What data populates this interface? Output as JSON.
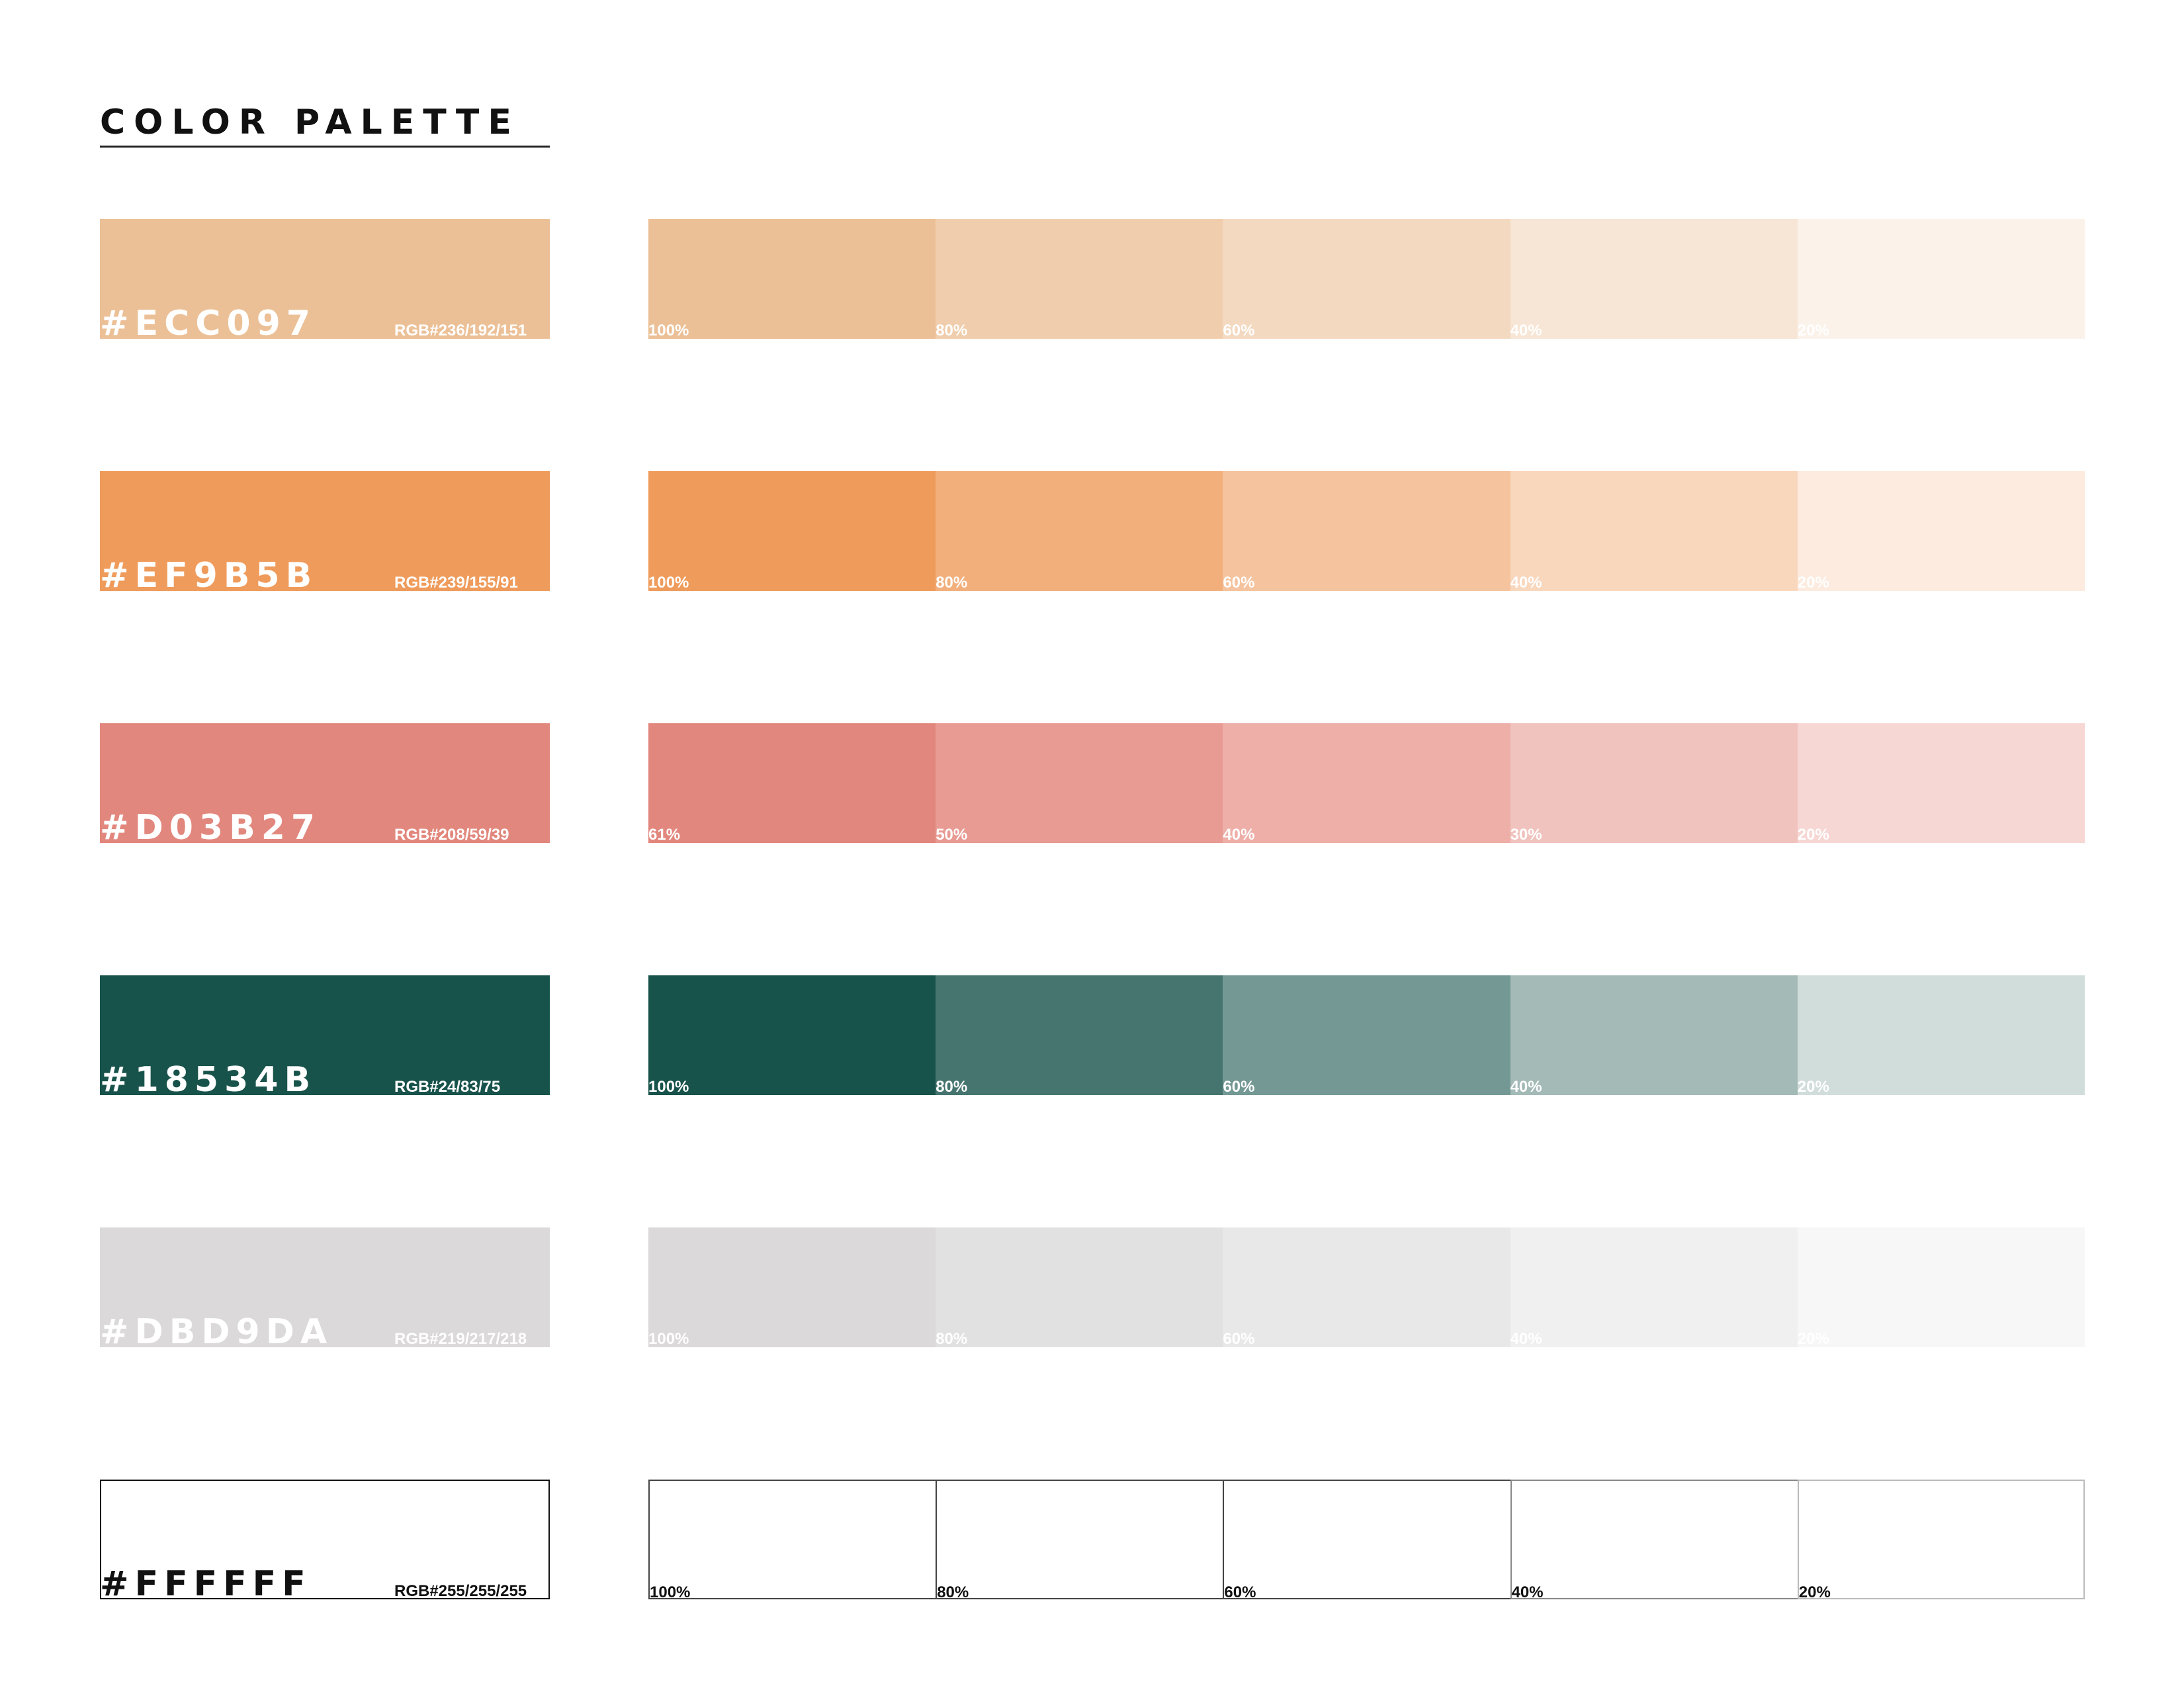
{
  "title": "COLOR PALETTE",
  "swatches": [
    {
      "hex": "#ECC097",
      "rgb": "RGB#236/192/151",
      "base_color": "#ECC097",
      "label_color": "#ffffff",
      "tints": [
        {
          "label": "100%",
          "color": "#ECC097"
        },
        {
          "label": "80%",
          "color": "#F0CDAC"
        },
        {
          "label": "60%",
          "color": "#F4D9C1"
        },
        {
          "label": "40%",
          "color": "#F7E6D5"
        },
        {
          "label": "20%",
          "color": "#FBF2EA"
        }
      ]
    },
    {
      "hex": "#EF9B5B",
      "rgb": "RGB#239/155/91",
      "base_color": "#EF9B5B",
      "label_color": "#ffffff",
      "tints": [
        {
          "label": "100%",
          "color": "#EF9B5B"
        },
        {
          "label": "80%",
          "color": "#F2AF7C"
        },
        {
          "label": "60%",
          "color": "#F5C39D"
        },
        {
          "label": "40%",
          "color": "#F9D7BD"
        },
        {
          "label": "20%",
          "color": "#FCEBDE"
        }
      ]
    },
    {
      "hex": "#D03B27",
      "rgb": "RGB#208/59/39",
      "base_color": "#E2877D",
      "label_color": "#ffffff",
      "tints": [
        {
          "label": "61%",
          "color": "#E2877D"
        },
        {
          "label": "50%",
          "color": "#E89B93"
        },
        {
          "label": "40%",
          "color": "#EDAFA8"
        },
        {
          "label": "30%",
          "color": "#F1C3BE"
        },
        {
          "label": "20%",
          "color": "#F6D7D4"
        }
      ]
    },
    {
      "hex": "#18534B",
      "rgb": "RGB#24/83/75",
      "base_color": "#18534B",
      "label_color": "#ffffff",
      "tints": [
        {
          "label": "100%",
          "color": "#18534B"
        },
        {
          "label": "80%",
          "color": "#46756F"
        },
        {
          "label": "60%",
          "color": "#749893"
        },
        {
          "label": "40%",
          "color": "#A3BAB7"
        },
        {
          "label": "20%",
          "color": "#D1DDDB"
        }
      ]
    },
    {
      "hex": "#DBD9DA",
      "rgb": "RGB#219/217/218",
      "base_color": "#DBD9DA",
      "label_color": "#ffffff",
      "tints": [
        {
          "label": "100%",
          "color": "#DBD9DA"
        },
        {
          "label": "80%",
          "color": "#E2E1E1"
        },
        {
          "label": "60%",
          "color": "#E9E8E9"
        },
        {
          "label": "40%",
          "color": "#F1F0F0"
        },
        {
          "label": "20%",
          "color": "#F8F7F8"
        }
      ]
    },
    {
      "hex": "#FFFFFF",
      "rgb": "RGB#255/255/255",
      "base_color": "#FFFFFF",
      "label_color": "#111111",
      "outlined": true,
      "tints": [
        {
          "label": "100%",
          "color": "#FFFFFF"
        },
        {
          "label": "80%",
          "color": "#FFFFFF"
        },
        {
          "label": "60%",
          "color": "#FFFFFF"
        },
        {
          "label": "40%",
          "color": "#FFFFFF"
        },
        {
          "label": "20%",
          "color": "#FFFFFF"
        }
      ]
    }
  ]
}
